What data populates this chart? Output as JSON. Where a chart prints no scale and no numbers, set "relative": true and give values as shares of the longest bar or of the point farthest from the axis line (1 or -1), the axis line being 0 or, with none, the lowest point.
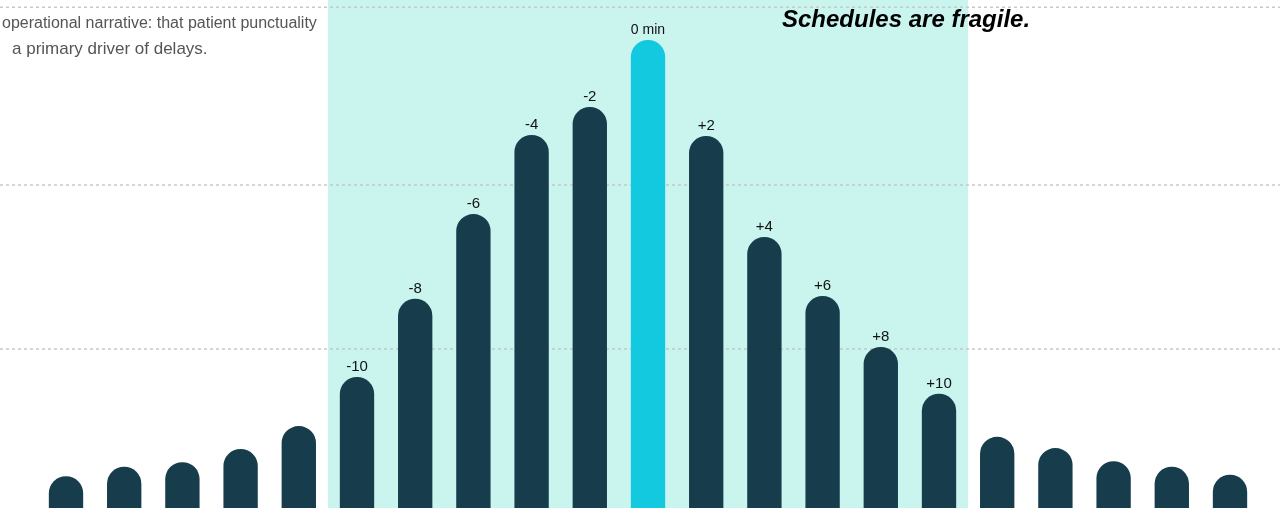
{
  "chart_data": {
    "type": "bar",
    "relative": true,
    "categories": [
      null,
      null,
      null,
      null,
      null,
      "-10",
      "-8",
      "-6",
      "-4",
      "-2",
      "0 min",
      "+2",
      "+4",
      "+6",
      "+8",
      "+10",
      null,
      null,
      null,
      null,
      null
    ],
    "values": [
      0.068,
      0.088,
      0.098,
      0.126,
      0.175,
      0.28,
      0.447,
      0.628,
      0.797,
      0.857,
      1,
      0.795,
      0.579,
      0.453,
      0.344,
      0.244,
      0.152,
      0.128,
      0.1,
      0.088,
      0.071
    ],
    "colors": [
      "#173c4c",
      "#173c4c",
      "#173c4c",
      "#173c4c",
      "#173c4c",
      "#173c4c",
      "#173c4c",
      "#173c4c",
      "#173c4c",
      "#173c4c",
      "#12c9e0",
      "#173c4c",
      "#173c4c",
      "#173c4c",
      "#173c4c",
      "#173c4c",
      "#173c4c",
      "#173c4c",
      "#173c4c",
      "#173c4c",
      "#173c4c"
    ],
    "bands": [
      {
        "axis": "x",
        "from": "-10",
        "to": "+10",
        "color": "#c9f5ee"
      }
    ],
    "ref_lines": [
      {
        "axis": "y",
        "value": 1.07,
        "line_style": "dotted",
        "color": "#c8c8c8"
      },
      {
        "axis": "y",
        "value": 0.69,
        "line_style": "dotted",
        "color": "#c8c8c8"
      },
      {
        "axis": "y",
        "value": 0.34,
        "line_style": "dotted",
        "color": "#c8c8c8"
      }
    ],
    "annotations": [
      "operational narrative: that patient punctuality",
      "a primary driver of delays.",
      "Schedules are fragile."
    ]
  }
}
